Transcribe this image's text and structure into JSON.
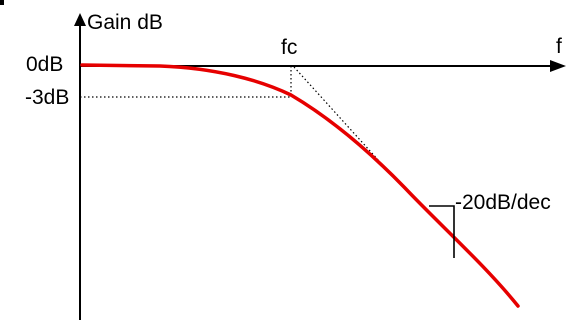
{
  "diagram": {
    "y_axis_label": "Gain dB",
    "x_axis_label": "f",
    "corner_label": "fc",
    "zero_label": "0dB",
    "minus3_label": "-3dB",
    "slope_label": "-20dB/dec",
    "colors": {
      "curve": "#e60000",
      "axes": "#000000"
    }
  }
}
